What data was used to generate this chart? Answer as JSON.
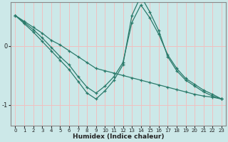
{
  "x": [
    0,
    1,
    2,
    3,
    4,
    5,
    6,
    7,
    8,
    9,
    10,
    11,
    12,
    13,
    14,
    15,
    16,
    17,
    18,
    19,
    20,
    21,
    22,
    23
  ],
  "line1": [
    0.52,
    0.42,
    0.32,
    0.22,
    0.1,
    0.02,
    -0.08,
    -0.18,
    -0.28,
    -0.38,
    -0.42,
    -0.46,
    -0.5,
    -0.54,
    -0.58,
    -0.62,
    -0.66,
    -0.7,
    -0.74,
    -0.78,
    -0.82,
    -0.85,
    -0.87,
    -0.9
  ],
  "line2": [
    0.52,
    0.4,
    0.28,
    0.14,
    -0.02,
    -0.18,
    -0.32,
    -0.52,
    -0.7,
    -0.8,
    -0.68,
    -0.52,
    -0.28,
    0.4,
    0.7,
    0.48,
    0.2,
    -0.15,
    -0.38,
    -0.55,
    -0.65,
    -0.75,
    -0.82,
    -0.9
  ],
  "line3": [
    0.52,
    0.38,
    0.24,
    0.08,
    -0.08,
    -0.24,
    -0.4,
    -0.6,
    -0.8,
    -0.9,
    -0.76,
    -0.58,
    -0.32,
    0.52,
    0.85,
    0.58,
    0.26,
    -0.18,
    -0.42,
    -0.58,
    -0.68,
    -0.78,
    -0.85,
    -0.9
  ],
  "color": "#2a7a6a",
  "bg_color": "#cce8e8",
  "grid_color": "#f0c0c0",
  "xlabel": "Humidex (Indice chaleur)",
  "ylim": [
    -1.35,
    0.75
  ],
  "xlim": [
    -0.5,
    23.5
  ],
  "yticks": [
    0,
    -1
  ],
  "xticks": [
    0,
    1,
    2,
    3,
    4,
    5,
    6,
    7,
    8,
    9,
    10,
    11,
    12,
    13,
    14,
    15,
    16,
    17,
    18,
    19,
    20,
    21,
    22,
    23
  ]
}
